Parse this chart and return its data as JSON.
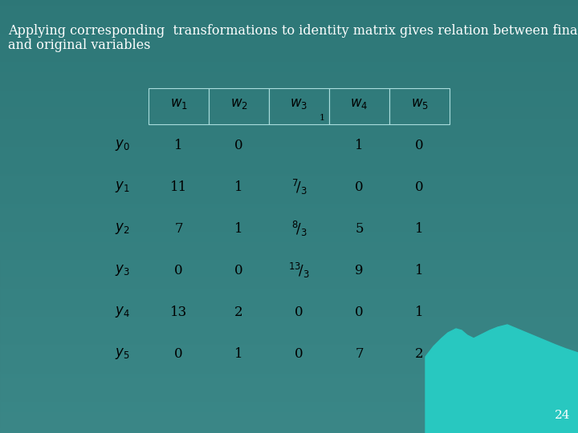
{
  "title_line1": "Applying corresponding  transformations to identity matrix gives relation between final",
  "title_line2": "and original variables",
  "title_fontsize": 11.5,
  "title_color": "white",
  "bg_color_top": "#2d7070",
  "bg_color_bottom": "#3a8a8a",
  "wave_color": "#2ec8c8",
  "page_number": "24",
  "header_labels": [
    "$w_1$",
    "$w_2$",
    "$w_3$",
    "$w_4$",
    "$w_5$"
  ],
  "row_labels": [
    "$y_0$",
    "$y_1$",
    "$y_2$",
    "$y_3$",
    "$y_4$",
    "$y_5$"
  ],
  "col1": [
    1,
    11,
    7,
    0,
    13,
    0
  ],
  "col2": [
    0,
    1,
    1,
    0,
    2,
    1
  ],
  "col4": [
    1,
    0,
    5,
    9,
    0,
    7
  ],
  "col5": [
    0,
    0,
    1,
    1,
    1,
    2
  ],
  "table_border_color": "#aadddd",
  "text_color": "black",
  "font_size_table": 12
}
